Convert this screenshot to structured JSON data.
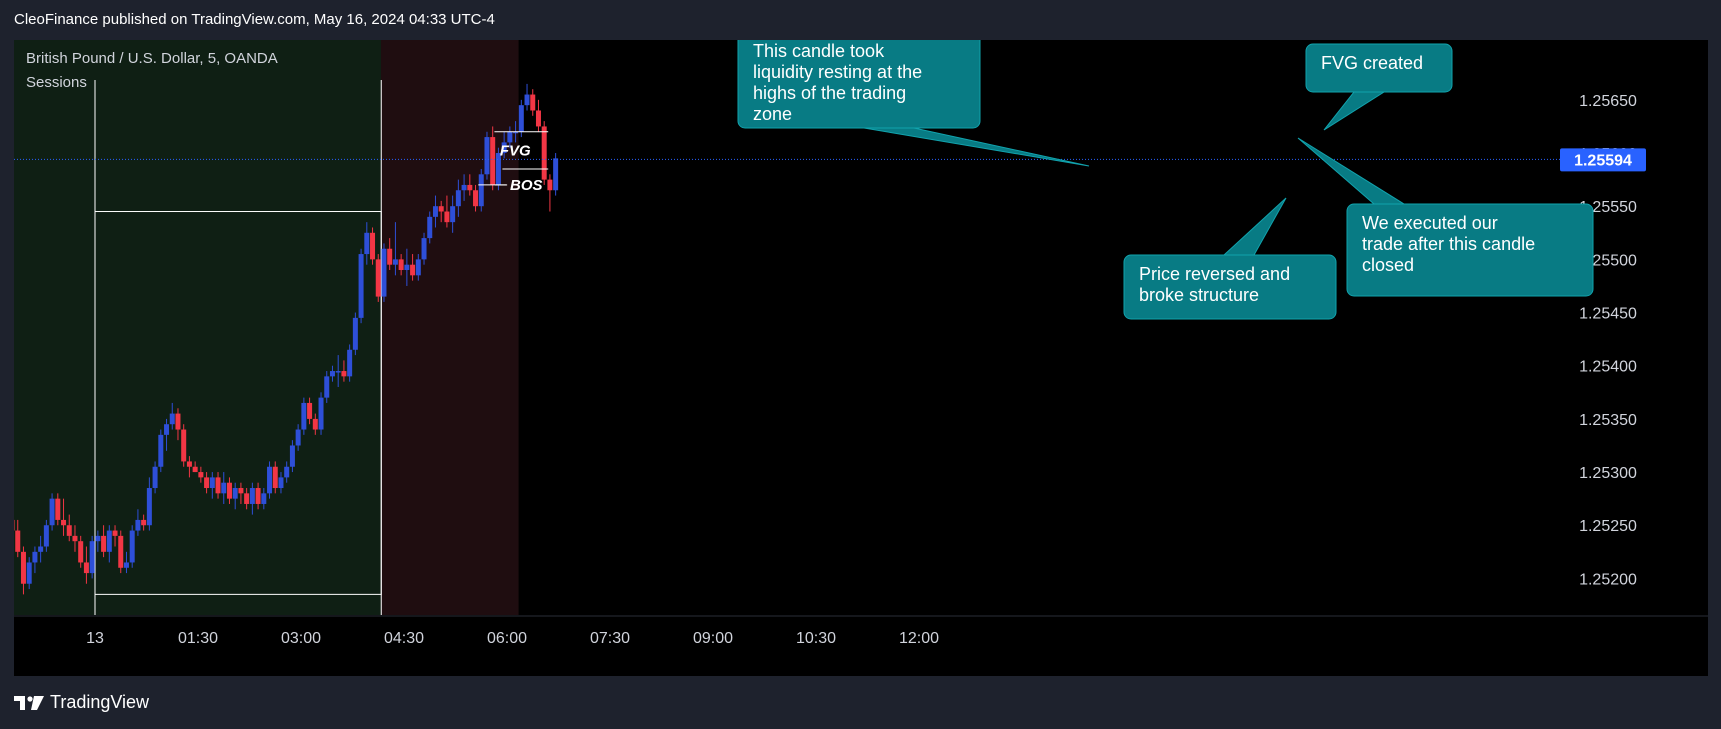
{
  "header": {
    "publish_line": "CleoFinance published on TradingView.com, May 16, 2024 04:33 UTC-4"
  },
  "footer": {
    "brand": "TradingView",
    "logo_icon": "tradingview-logo-icon"
  },
  "colors": {
    "up": "#2e4fd8",
    "down": "#f23645",
    "price_badge": "#2962ff",
    "annotation_bg": "#087b84",
    "annotation_border": "#11a3ad"
  },
  "chart_data": {
    "type": "candlestick",
    "title": "British Pound / U.S. Dollar, 5, OANDA",
    "indicator": "Sessions",
    "symbol": "GBPUSD",
    "interval": "5",
    "broker": "OANDA",
    "x_ticks": [
      "13",
      "01:30",
      "03:00",
      "04:30",
      "06:00",
      "07:30",
      "09:00",
      "10:30",
      "12:00"
    ],
    "y_ticks": [
      "1.25200",
      "1.25250",
      "1.25300",
      "1.25350",
      "1.25400",
      "1.25450",
      "1.25500",
      "1.25550",
      "1.25600",
      "1.25650"
    ],
    "ylim": [
      1.25175,
      1.25695
    ],
    "last_price": "1.25594",
    "last_price_value": 1.25594,
    "time_axis": {
      "start": "00:00",
      "candle_minutes": 5,
      "visible_end": "13:35"
    },
    "candles_ohlc": [
      [
        1.25245,
        1.25245,
        1.2523,
        1.2524
      ],
      [
        1.2524,
        1.2526,
        1.25235,
        1.25255
      ],
      [
        1.25255,
        1.25265,
        1.2525,
        1.2526
      ],
      [
        1.2526,
        1.25265,
        1.25255,
        1.25255
      ],
      [
        1.25255,
        1.25265,
        1.25245,
        1.2526
      ],
      [
        1.2526,
        1.25275,
        1.2525,
        1.25255
      ],
      [
        1.25255,
        1.2528,
        1.2525,
        1.25275
      ],
      [
        1.25275,
        1.2528,
        1.25265,
        1.2527
      ],
      [
        1.2527,
        1.25285,
        1.2526,
        1.2526
      ],
      [
        1.2526,
        1.2528,
        1.25255,
        1.25265
      ],
      [
        1.25265,
        1.2527,
        1.25255,
        1.2526
      ],
      [
        1.2526,
        1.25265,
        1.2525,
        1.25255
      ],
      [
        1.25255,
        1.2526,
        1.25245,
        1.25255
      ],
      [
        1.25255,
        1.25265,
        1.2525,
        1.2525
      ],
      [
        1.2525,
        1.2526,
        1.25245,
        1.25255
      ],
      [
        1.25255,
        1.2526,
        1.2525,
        1.25255
      ],
      [
        1.25255,
        1.2527,
        1.2525,
        1.25265
      ],
      [
        1.25265,
        1.2527,
        1.2526,
        1.25255
      ],
      [
        1.25255,
        1.2526,
        1.25245,
        1.2525
      ],
      [
        1.2525,
        1.2526,
        1.2524,
        1.25245
      ],
      [
        1.25245,
        1.25255,
        1.2524,
        1.2525
      ],
      [
        1.2525,
        1.25255,
        1.2524,
        1.25245
      ],
      [
        1.25245,
        1.2526,
        1.2524,
        1.25255
      ],
      [
        1.25255,
        1.25265,
        1.2525,
        1.2526
      ],
      [
        1.2526,
        1.25265,
        1.25255,
        1.2526
      ],
      [
        1.2526,
        1.25265,
        1.25255,
        1.25255
      ],
      [
        1.25255,
        1.2526,
        1.2525,
        1.2526
      ],
      [
        1.2526,
        1.25265,
        1.25255,
        1.25255
      ],
      [
        1.25255,
        1.25265,
        1.2525,
        1.2526
      ],
      [
        1.2526,
        1.2527,
        1.25255,
        1.2527
      ],
      [
        1.2527,
        1.2531,
        1.25265,
        1.25305
      ],
      [
        1.25305,
        1.25315,
        1.2529,
        1.253
      ],
      [
        1.253,
        1.25305,
        1.2529,
        1.25295
      ],
      [
        1.25295,
        1.253,
        1.25285,
        1.25295
      ],
      [
        1.25295,
        1.25305,
        1.2529,
        1.253
      ],
      [
        1.253,
        1.25305,
        1.2528,
        1.25285
      ],
      [
        1.25285,
        1.253,
        1.2528,
        1.25295
      ],
      [
        1.25295,
        1.25335,
        1.2529,
        1.25325
      ],
      [
        1.25325,
        1.2533,
        1.25305,
        1.2531
      ],
      [
        1.2531,
        1.25315,
        1.2528,
        1.25285
      ],
      [
        1.25285,
        1.2532,
        1.2528,
        1.2531
      ],
      [
        1.2531,
        1.25315,
        1.25295,
        1.25305
      ],
      [
        1.25305,
        1.2534,
        1.253,
        1.25335
      ],
      [
        1.25335,
        1.2536,
        1.25325,
        1.25345
      ],
      [
        1.25345,
        1.2535,
        1.253,
        1.25305
      ],
      [
        1.25305,
        1.2531,
        1.25265,
        1.2527
      ],
      [
        1.2527,
        1.25305,
        1.25265,
        1.253
      ],
      [
        1.253,
        1.25305,
        1.25285,
        1.25295
      ],
      [
        1.25295,
        1.253,
        1.2528,
        1.25285
      ],
      [
        1.25285,
        1.253,
        1.2527,
        1.2529
      ],
      [
        1.2529,
        1.25295,
        1.2525,
        1.25255
      ],
      [
        1.25255,
        1.2526,
        1.25235,
        1.25245
      ],
      [
        1.25245,
        1.25255,
        1.2522,
        1.25225
      ],
      [
        1.25225,
        1.2523,
        1.25185,
        1.25195
      ],
      [
        1.25195,
        1.2522,
        1.2519,
        1.25215
      ],
      [
        1.25215,
        1.2523,
        1.25205,
        1.25225
      ],
      [
        1.25225,
        1.2524,
        1.25215,
        1.2523
      ],
      [
        1.2523,
        1.25255,
        1.25225,
        1.2525
      ],
      [
        1.2525,
        1.2528,
        1.25245,
        1.25275
      ],
      [
        1.25275,
        1.2528,
        1.2525,
        1.25255
      ],
      [
        1.25255,
        1.25275,
        1.2524,
        1.2525
      ],
      [
        1.2525,
        1.2526,
        1.25235,
        1.2524
      ],
      [
        1.2524,
        1.2525,
        1.25225,
        1.25235
      ],
      [
        1.25235,
        1.2524,
        1.2521,
        1.25215
      ],
      [
        1.25215,
        1.2523,
        1.25195,
        1.25205
      ],
      [
        1.25205,
        1.2524,
        1.252,
        1.25235
      ],
      [
        1.25235,
        1.25245,
        1.25225,
        1.2524
      ],
      [
        1.2524,
        1.2525,
        1.2522,
        1.25225
      ],
      [
        1.25225,
        1.2525,
        1.25215,
        1.25245
      ],
      [
        1.25245,
        1.2525,
        1.2523,
        1.2524
      ],
      [
        1.2524,
        1.25245,
        1.25205,
        1.2521
      ],
      [
        1.2521,
        1.25225,
        1.25205,
        1.25215
      ],
      [
        1.25215,
        1.2525,
        1.2521,
        1.25245
      ],
      [
        1.25245,
        1.25265,
        1.2524,
        1.25255
      ],
      [
        1.25255,
        1.2526,
        1.25245,
        1.2525
      ],
      [
        1.2525,
        1.25295,
        1.25245,
        1.25285
      ],
      [
        1.25285,
        1.2531,
        1.2528,
        1.25305
      ],
      [
        1.25305,
        1.2534,
        1.253,
        1.25335
      ],
      [
        1.25335,
        1.2535,
        1.2532,
        1.25345
      ],
      [
        1.25345,
        1.25365,
        1.2534,
        1.25355
      ],
      [
        1.25355,
        1.2536,
        1.2533,
        1.2534
      ],
      [
        1.2534,
        1.25345,
        1.25305,
        1.2531
      ],
      [
        1.2531,
        1.25315,
        1.25295,
        1.25305
      ],
      [
        1.25305,
        1.2531,
        1.253,
        1.253
      ],
      [
        1.253,
        1.25305,
        1.2529,
        1.25295
      ],
      [
        1.25295,
        1.253,
        1.2528,
        1.25285
      ],
      [
        1.25285,
        1.253,
        1.25275,
        1.25295
      ],
      [
        1.25295,
        1.253,
        1.25275,
        1.2528
      ],
      [
        1.2528,
        1.253,
        1.2527,
        1.2529
      ],
      [
        1.2529,
        1.25295,
        1.2527,
        1.25275
      ],
      [
        1.25275,
        1.2529,
        1.25265,
        1.25285
      ],
      [
        1.25285,
        1.2529,
        1.2527,
        1.2528
      ],
      [
        1.2528,
        1.25285,
        1.25265,
        1.2527
      ],
      [
        1.2527,
        1.2529,
        1.2526,
        1.25285
      ],
      [
        1.25285,
        1.2529,
        1.25265,
        1.2527
      ],
      [
        1.2527,
        1.25285,
        1.25265,
        1.2528
      ],
      [
        1.2528,
        1.2531,
        1.25275,
        1.25305
      ],
      [
        1.25305,
        1.2531,
        1.2528,
        1.25285
      ],
      [
        1.25285,
        1.253,
        1.2528,
        1.25295
      ],
      [
        1.25295,
        1.2531,
        1.2529,
        1.25305
      ],
      [
        1.25305,
        1.2533,
        1.253,
        1.25325
      ],
      [
        1.25325,
        1.25345,
        1.2532,
        1.2534
      ],
      [
        1.2534,
        1.2537,
        1.25335,
        1.25365
      ],
      [
        1.25365,
        1.2537,
        1.25345,
        1.2535
      ],
      [
        1.2535,
        1.25355,
        1.25335,
        1.2534
      ],
      [
        1.2534,
        1.25375,
        1.25335,
        1.2537
      ],
      [
        1.2537,
        1.25395,
        1.25365,
        1.2539
      ],
      [
        1.2539,
        1.254,
        1.25385,
        1.25395
      ],
      [
        1.25395,
        1.2541,
        1.2538,
        1.25395
      ],
      [
        1.25395,
        1.25405,
        1.25385,
        1.2539
      ],
      [
        1.2539,
        1.2542,
        1.25385,
        1.25415
      ],
      [
        1.25415,
        1.2545,
        1.2541,
        1.25445
      ],
      [
        1.25445,
        1.2551,
        1.2544,
        1.25505
      ],
      [
        1.25505,
        1.25535,
        1.25495,
        1.25525
      ],
      [
        1.25525,
        1.2553,
        1.25495,
        1.255
      ],
      [
        1.255,
        1.25505,
        1.2546,
        1.25465
      ],
      [
        1.25465,
        1.25515,
        1.2546,
        1.2551
      ],
      [
        1.2551,
        1.2552,
        1.2549,
        1.25495
      ],
      [
        1.25495,
        1.25535,
        1.25485,
        1.255
      ],
      [
        1.255,
        1.25505,
        1.25485,
        1.2549
      ],
      [
        1.2549,
        1.2551,
        1.25475,
        1.25495
      ],
      [
        1.25495,
        1.25505,
        1.2548,
        1.25485
      ],
      [
        1.25485,
        1.25505,
        1.2548,
        1.255
      ],
      [
        1.255,
        1.25525,
        1.25495,
        1.2552
      ],
      [
        1.2552,
        1.25545,
        1.25515,
        1.2554
      ],
      [
        1.2554,
        1.2556,
        1.2553,
        1.2555
      ],
      [
        1.2555,
        1.25555,
        1.25535,
        1.25545
      ],
      [
        1.25545,
        1.2556,
        1.2553,
        1.25535
      ],
      [
        1.25535,
        1.2556,
        1.25525,
        1.2555
      ],
      [
        1.2555,
        1.25575,
        1.2554,
        1.25565
      ],
      [
        1.25565,
        1.2558,
        1.25555,
        1.2557
      ],
      [
        1.2557,
        1.2558,
        1.2556,
        1.25565
      ],
      [
        1.25565,
        1.2557,
        1.25545,
        1.2555
      ],
      [
        1.2555,
        1.25585,
        1.25545,
        1.2558
      ],
      [
        1.2558,
        1.2562,
        1.25575,
        1.25615
      ],
      [
        1.25615,
        1.25625,
        1.25565,
        1.2557
      ],
      [
        1.2557,
        1.25605,
        1.25565,
        1.256
      ],
      [
        1.256,
        1.2562,
        1.25595,
        1.2561
      ],
      [
        1.2561,
        1.25625,
        1.25605,
        1.2562
      ],
      [
        1.2562,
        1.2563,
        1.2561,
        1.2562
      ],
      [
        1.2562,
        1.2565,
        1.25615,
        1.25645
      ],
      [
        1.25645,
        1.25665,
        1.2564,
        1.25655
      ],
      [
        1.25655,
        1.2566,
        1.25635,
        1.2564
      ],
      [
        1.2564,
        1.2565,
        1.2562,
        1.25625
      ],
      [
        1.25625,
        1.2563,
        1.2557,
        1.25575
      ],
      [
        1.25575,
        1.2558,
        1.25545,
        1.25565
      ],
      [
        1.25565,
        1.256,
        1.2556,
        1.25595
      ]
    ],
    "sessions": [
      {
        "name": "first-session",
        "start_index": 0,
        "end_index": 115,
        "color": "#0f1f14"
      },
      {
        "name": "second-session",
        "start_index": 116,
        "end_index": 139,
        "color": "#1f0d10"
      }
    ],
    "trading_zone": {
      "high": 1.25545,
      "low": 1.25185,
      "start_index": 10,
      "end_index": 115
    },
    "fvg_zone": {
      "top": 1.2562,
      "bottom": 1.25585,
      "start_index": 136,
      "end_index": 144
    },
    "bos_level": {
      "price": 1.2557,
      "start_index": 133,
      "end_index": 137
    },
    "labels": {
      "fvg": "FVG",
      "bos": "BOS"
    },
    "annotations": [
      {
        "name": "annotation-liquidity",
        "lines": [
          "This candle took",
          "liquidity resting at the",
          "highs of the trading",
          "zone"
        ]
      },
      {
        "name": "annotation-fvg-created",
        "lines": [
          "FVG created"
        ]
      },
      {
        "name": "annotation-reversed",
        "lines": [
          "Price reversed and",
          "broke structure"
        ]
      },
      {
        "name": "annotation-executed",
        "lines": [
          "We executed our",
          "trade after this candle",
          "closed"
        ]
      }
    ]
  }
}
